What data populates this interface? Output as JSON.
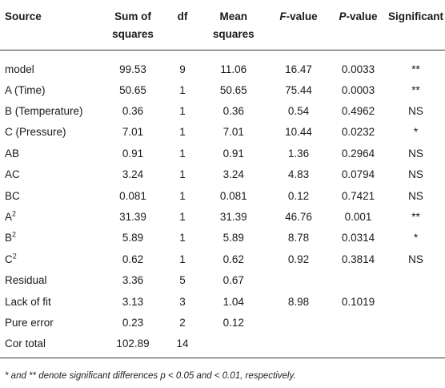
{
  "headers": {
    "source": "Source",
    "ss_line1": "Sum of",
    "ss_line2": "squares",
    "df": "df",
    "ms_line1": "Mean",
    "ms_line2": "squares",
    "f_italic": "F",
    "f_rest": "-value",
    "p_italic": "P",
    "p_rest": "-value",
    "significant": "Significant"
  },
  "rows": [
    {
      "source": "model",
      "sup": "",
      "ss": "99.53",
      "df": "9",
      "ms": "11.06",
      "f": "16.47",
      "p": "0.0033",
      "sig": "**"
    },
    {
      "source": "A (Time)",
      "sup": "",
      "ss": "50.65",
      "df": "1",
      "ms": "50.65",
      "f": "75.44",
      "p": "0.0003",
      "sig": "**"
    },
    {
      "source": "B (Temperature)",
      "sup": "",
      "ss": "0.36",
      "df": "1",
      "ms": "0.36",
      "f": "0.54",
      "p": "0.4962",
      "sig": "NS"
    },
    {
      "source": "C (Pressure)",
      "sup": "",
      "ss": "7.01",
      "df": "1",
      "ms": "7.01",
      "f": "10.44",
      "p": "0.0232",
      "sig": "*"
    },
    {
      "source": "AB",
      "sup": "",
      "ss": "0.91",
      "df": "1",
      "ms": "0.91",
      "f": "1.36",
      "p": "0.2964",
      "sig": "NS"
    },
    {
      "source": "AC",
      "sup": "",
      "ss": "3.24",
      "df": "1",
      "ms": "3.24",
      "f": "4.83",
      "p": "0.0794",
      "sig": "NS"
    },
    {
      "source": "BC",
      "sup": "",
      "ss": "0.081",
      "df": "1",
      "ms": "0.081",
      "f": "0.12",
      "p": "0.7421",
      "sig": "NS"
    },
    {
      "source": "A",
      "sup": "2",
      "ss": "31.39",
      "df": "1",
      "ms": "31.39",
      "f": "46.76",
      "p": "0.001",
      "sig": "**"
    },
    {
      "source": "B",
      "sup": "2",
      "ss": "5.89",
      "df": "1",
      "ms": "5.89",
      "f": "8.78",
      "p": "0.0314",
      "sig": "*"
    },
    {
      "source": "C",
      "sup": "2",
      "ss": "0.62",
      "df": "1",
      "ms": "0.62",
      "f": "0.92",
      "p": "0.3814",
      "sig": "NS"
    },
    {
      "source": "Residual",
      "sup": "",
      "ss": "3.36",
      "df": "5",
      "ms": "0.67",
      "f": "",
      "p": "",
      "sig": ""
    },
    {
      "source": "Lack of fit",
      "sup": "",
      "ss": "3.13",
      "df": "3",
      "ms": "1.04",
      "f": "8.98",
      "p": "0.1019",
      "sig": ""
    },
    {
      "source": "Pure error",
      "sup": "",
      "ss": "0.23",
      "df": "2",
      "ms": "0.12",
      "f": "",
      "p": "",
      "sig": ""
    },
    {
      "source": "Cor total",
      "sup": "",
      "ss": "102.89",
      "df": "14",
      "ms": "",
      "f": "",
      "p": "",
      "sig": ""
    }
  ],
  "footnote": "* and ** denote significant differences p < 0.05 and < 0.01, respectively."
}
